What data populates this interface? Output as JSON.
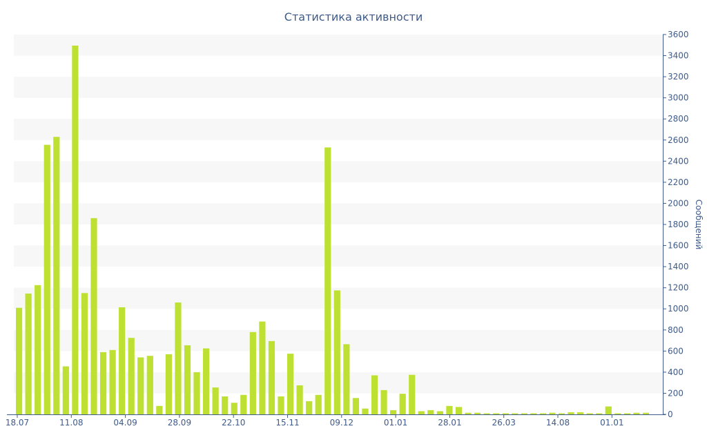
{
  "chart_data": {
    "type": "bar",
    "title": "Статистика активности",
    "ylabel": "Сообщений",
    "xlabel": "",
    "ylim": [
      0,
      3600
    ],
    "y_ticks": [
      0,
      200,
      400,
      600,
      800,
      1000,
      1200,
      1400,
      1600,
      1800,
      2000,
      2200,
      2400,
      2600,
      2800,
      3000,
      3200,
      3400,
      3600
    ],
    "y_axis_position": "right",
    "grid": "horizontal alternating bands",
    "x_tick_labels": [
      "18.07",
      "11.08",
      "04.09",
      "28.09",
      "22.10",
      "15.11",
      "09.12",
      "01.01",
      "28.01",
      "26.03",
      "14.08",
      "01.01"
    ],
    "values": [
      1010,
      1145,
      1225,
      2555,
      2630,
      455,
      3495,
      1150,
      1860,
      590,
      610,
      1015,
      725,
      540,
      555,
      80,
      570,
      1060,
      655,
      400,
      625,
      255,
      170,
      110,
      185,
      780,
      880,
      695,
      170,
      575,
      275,
      125,
      185,
      2530,
      1175,
      665,
      155,
      55,
      370,
      230,
      40,
      195,
      375,
      30,
      40,
      30,
      80,
      70,
      15,
      15,
      10,
      10,
      10,
      10,
      10,
      10,
      10,
      15,
      10,
      20,
      20,
      10,
      10,
      75,
      10,
      10,
      15,
      15
    ],
    "colors": {
      "bar": "#bde033",
      "band": "#f7f7f7",
      "text": "#3e5a8a",
      "axis": "#3e5a8a"
    }
  }
}
